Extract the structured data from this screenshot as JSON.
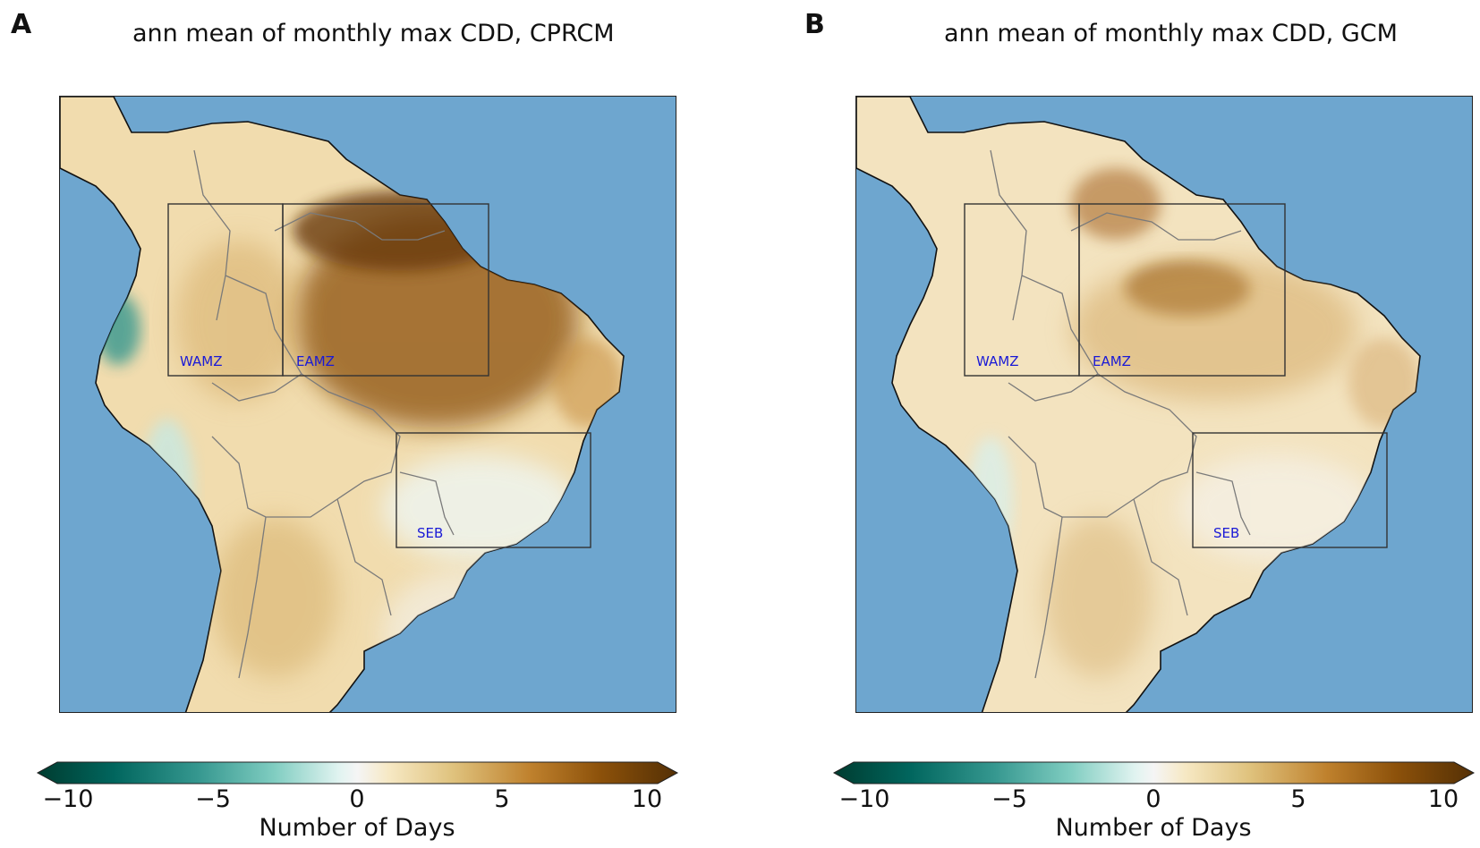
{
  "panels": [
    {
      "letter": "A",
      "title": "ann mean of monthly max CDD, CPRCM",
      "regions": [
        {
          "label": "WAMZ"
        },
        {
          "label": "EAMZ"
        },
        {
          "label": "SEB"
        }
      ],
      "colorbar": {
        "ticks": [
          "−10",
          "−5",
          "0",
          "5",
          "10"
        ],
        "label": "Number of Days"
      }
    },
    {
      "letter": "B",
      "title": "ann mean of monthly max CDD, GCM",
      "regions": [
        {
          "label": "WAMZ"
        },
        {
          "label": "EAMZ"
        },
        {
          "label": "SEB"
        }
      ],
      "colorbar": {
        "ticks": [
          "−10",
          "−5",
          "0",
          "5",
          "10"
        ],
        "label": "Number of Days"
      }
    }
  ],
  "colors": {
    "ocean": "#6ea6cf",
    "land_base": "#f1dcae",
    "neg_end": "#003c30",
    "pos_end": "#543005",
    "neutral": "#f5f5f5"
  }
}
